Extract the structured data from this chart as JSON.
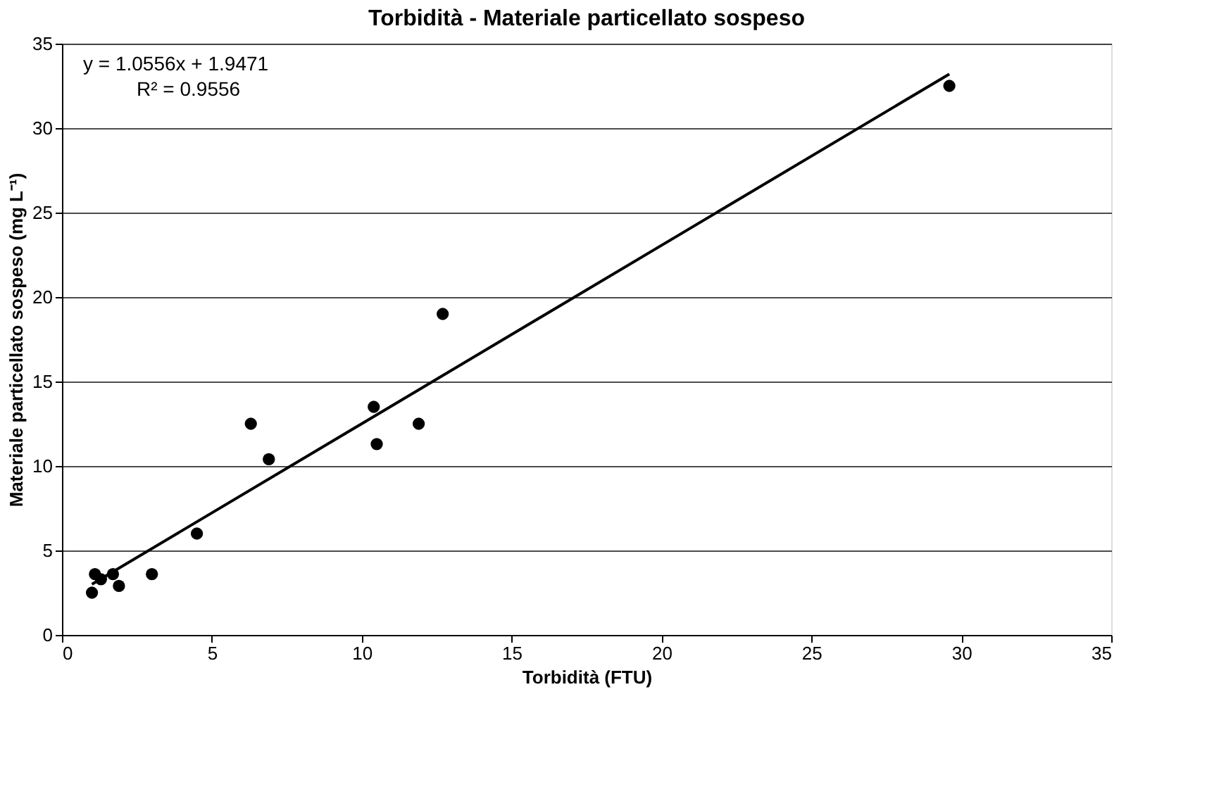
{
  "chart_data": {
    "type": "scatter",
    "title": "Torbidità - Materiale particellato sospeso",
    "xlabel": "Torbidità (FTU)",
    "ylabel": "Materiale particellato sospeso (mg L⁻¹)",
    "series": [
      {
        "color": "#000000",
        "x": [
          1.0,
          1.1,
          1.3,
          1.7,
          1.9,
          3.0,
          4.5,
          6.3,
          6.9,
          10.4,
          10.5,
          11.9,
          12.7,
          29.6
        ],
        "values": [
          2.5,
          3.6,
          3.3,
          3.6,
          2.9,
          3.6,
          6.0,
          12.5,
          10.4,
          13.5,
          11.3,
          12.5,
          19.0,
          32.5
        ]
      },
      {
        "type": "line",
        "color": "#000000",
        "x": [
          1.0,
          29.6
        ],
        "values": [
          3.0,
          33.2
        ]
      }
    ],
    "annotations": [
      "y = 1.0556x + 1.9471",
      "R² = 0.9556"
    ],
    "xlim": [
      0,
      35
    ],
    "xticks": [
      0,
      5,
      10,
      15,
      20,
      25,
      30,
      35
    ],
    "ylim": [
      0,
      35
    ],
    "yticks": [
      0,
      5,
      10,
      15,
      20,
      25,
      30,
      35
    ],
    "grid": "y"
  }
}
